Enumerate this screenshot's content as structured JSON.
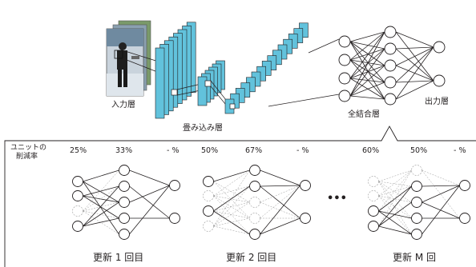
{
  "top": {
    "input_label": "入力層",
    "conv_label": "畳み込み層",
    "fc_label": "全結合層",
    "output_label": "出力層"
  },
  "panel": {
    "row_label_line1": "ユニットの",
    "row_label_line2": "削減率",
    "ellipsis": "•••",
    "updates": [
      {
        "label": "更新 1 回目",
        "rates": [
          "25%",
          "33%",
          "- %"
        ]
      },
      {
        "label": "更新 2 回目",
        "rates": [
          "50%",
          "67%",
          "- %"
        ]
      },
      {
        "label": "更新 M 回",
        "rates": [
          "60%",
          "50%",
          "- %"
        ]
      }
    ]
  },
  "colors": {
    "feature_map_fill": "#62c2dc",
    "line": "#231f20",
    "dropped_unit": "#9a9a9a"
  }
}
